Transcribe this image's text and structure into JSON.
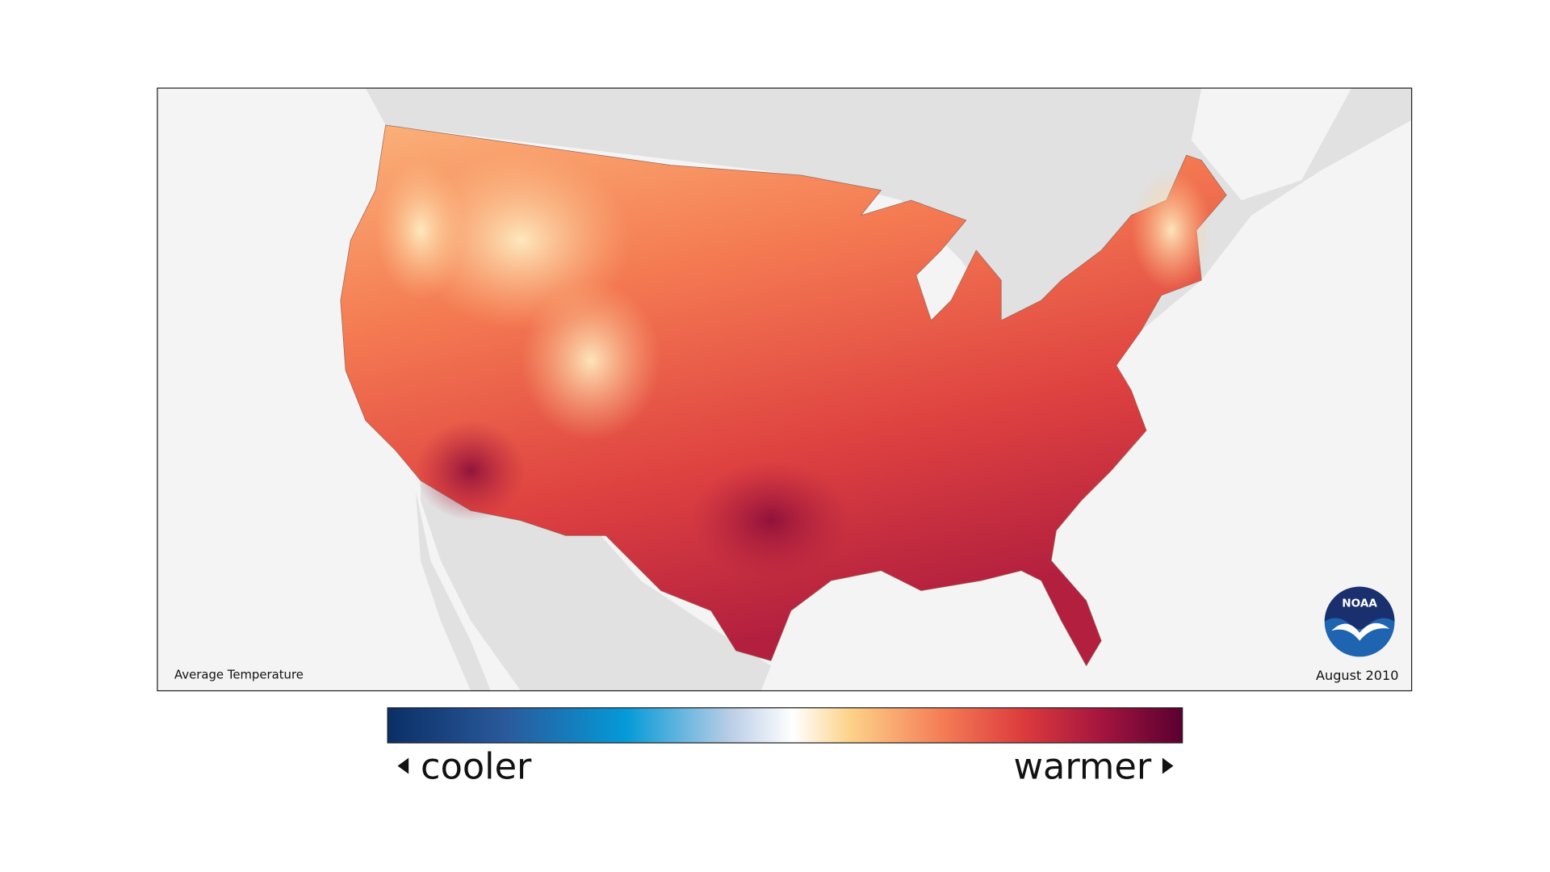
{
  "map": {
    "caption": "Average Temperature",
    "date": "August 2010"
  },
  "legend": {
    "low_label": "cooler",
    "high_label": "warmer"
  },
  "logo": {
    "text": "NOAA"
  }
}
